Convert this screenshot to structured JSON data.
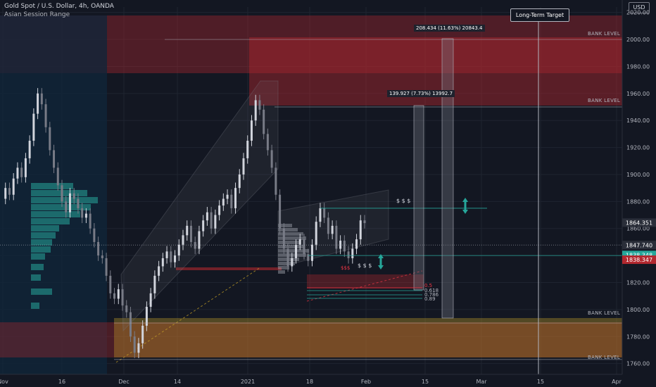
{
  "header": {
    "symbol": "Gold Spot / U.S. Dollar, 4h, OANDA",
    "indicator": "Asian Session Range"
  },
  "currency": "USD",
  "long_term_target": "Long-Term Target",
  "annotations": {
    "bank_level": "BANK LEVEL",
    "measure_upper": "208.434 (11.63%) 20843.4",
    "measure_lower": "139.927 (7.73%) 13992.7",
    "dollars": "$ $ $",
    "dollars_red": "$$$",
    "fib_levels": [
      "0.5",
      "0.618",
      "0.786",
      "0.89"
    ]
  },
  "colors": {
    "background": "#131722",
    "grid": "#1f2430",
    "supply_zone": "#b2282f",
    "demand_zone": "#c9a227",
    "volume_profile": "#26a69a",
    "price_line": "#26a69a",
    "accent_red": "#f23645"
  },
  "chart_data": {
    "type": "candlestick",
    "symbol": "XAUUSD",
    "timeframe": "4h",
    "y_axis": {
      "ticks": [
        1760,
        1780,
        1800,
        1820,
        1840,
        1860,
        1880,
        1900,
        1920,
        1940,
        1960,
        1980,
        2000,
        2020
      ],
      "ylim": [
        1752,
        2024
      ]
    },
    "x_axis": {
      "ticks": [
        "Nov",
        "16",
        "Dec",
        "14",
        "2021",
        "18",
        "Feb",
        "15",
        "Mar",
        "15",
        "Apr"
      ]
    },
    "price_labels": [
      {
        "value": "1864.351",
        "price": 1864.351,
        "color": "#2a2e39"
      },
      {
        "value": "1847.740",
        "price": 1847.74,
        "color": "#2a2e39"
      },
      {
        "value": "1838.348",
        "price": 1840.4,
        "color": "#26a69a"
      },
      {
        "value": "1838.347",
        "price": 1836.9,
        "color": "#b2282f"
      }
    ],
    "bank_levels": [
      2000,
      1950,
      1790,
      1763
    ],
    "close_series": [
      1882,
      1890,
      1885,
      1897,
      1905,
      1898,
      1912,
      1925,
      1945,
      1960,
      1952,
      1935,
      1918,
      1905,
      1892,
      1880,
      1872,
      1886,
      1882,
      1875,
      1868,
      1871,
      1860,
      1850,
      1840,
      1838,
      1825,
      1812,
      1808,
      1815,
      1803,
      1798,
      1780,
      1768,
      1775,
      1788,
      1802,
      1812,
      1825,
      1832,
      1838,
      1843,
      1835,
      1840,
      1848,
      1855,
      1862,
      1850,
      1845,
      1858,
      1866,
      1872,
      1860,
      1870,
      1877,
      1882,
      1885,
      1875,
      1890,
      1900,
      1912,
      1925,
      1940,
      1955,
      1948,
      1930,
      1918,
      1905,
      1885,
      1860,
      1845,
      1832,
      1838,
      1848,
      1852,
      1841,
      1836,
      1848,
      1865,
      1875,
      1868,
      1856,
      1862,
      1845,
      1851,
      1843,
      1838,
      1845,
      1852,
      1866,
      1864
    ]
  }
}
